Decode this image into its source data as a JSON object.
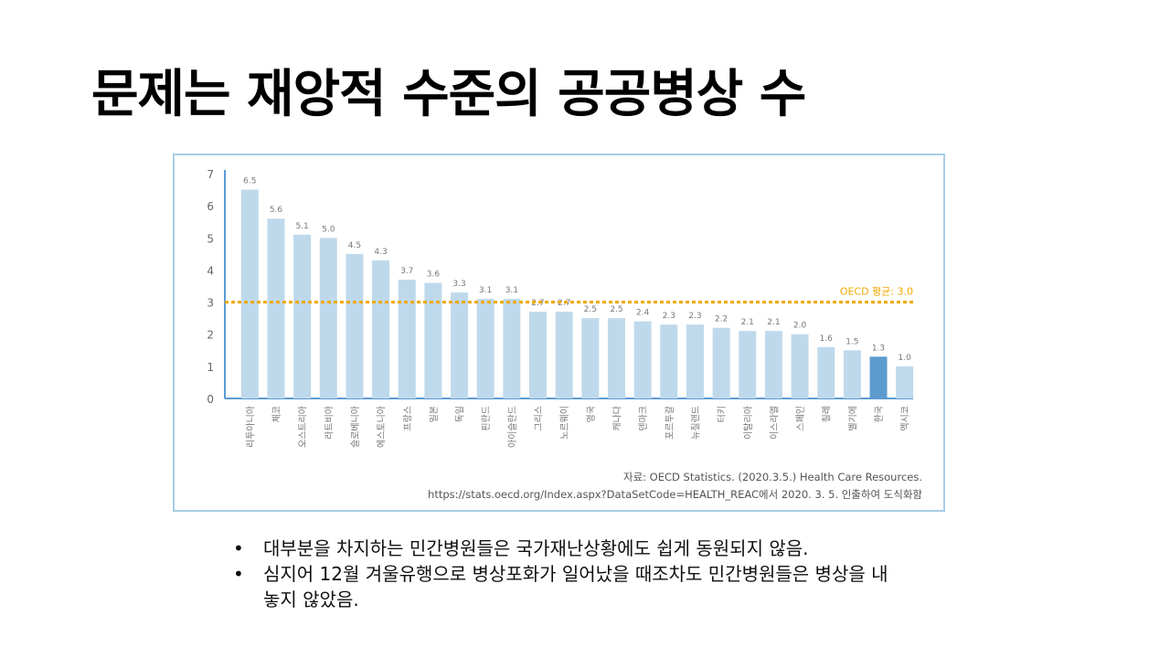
{
  "title": "문제는 재앙적 수준의 공공병상 수",
  "colors": {
    "bar": "#bfd9ec",
    "highlight_bar": "#5d9bcf",
    "avg_line": "#f0a800",
    "axis": "#5b9bd5",
    "frame": "#a8cde6"
  },
  "chart_data": {
    "type": "bar",
    "categories": [
      "리투아니아",
      "체코",
      "오스트리아",
      "라트비아",
      "슬로베니아",
      "에스토니아",
      "프랑스",
      "일본",
      "독일",
      "핀란드",
      "아이슬란드",
      "그리스",
      "노르웨이",
      "영국",
      "캐나다",
      "덴마크",
      "포르투갈",
      "뉴질랜드",
      "터키",
      "이탈리아",
      "이스라엘",
      "스페인",
      "칠레",
      "벨기에",
      "한국",
      "멕시코"
    ],
    "values": [
      6.5,
      5.6,
      5.1,
      5.0,
      4.5,
      4.3,
      3.7,
      3.6,
      3.3,
      3.1,
      3.1,
      2.7,
      2.7,
      2.5,
      2.5,
      2.4,
      2.3,
      2.3,
      2.2,
      2.1,
      2.1,
      2.0,
      1.6,
      1.5,
      1.3,
      1.0
    ],
    "value_labels": [
      "6.5",
      "5.6",
      "5.1",
      "5.0",
      "4.5",
      "4.3",
      "3.7",
      "3.6",
      "3.3",
      "3.1",
      "3.1",
      "2.7",
      "2.7",
      "2.5",
      "2.5",
      "2.4",
      "2.3",
      "2.3",
      "2.2",
      "2.1",
      "2.1",
      "2.0",
      "1.6",
      "1.5",
      "1.3",
      "1.0"
    ],
    "highlight": "한국",
    "ylim": [
      0,
      7
    ],
    "yticks": [
      "0",
      "1",
      "2",
      "3",
      "4",
      "5",
      "6",
      "7"
    ],
    "reference_line": {
      "value": 3.0,
      "label": "OECD 평균: 3.0"
    },
    "grid": false,
    "source_lines": [
      "자료: OECD Statistics. (2020.3.5.) Health Care Resources.",
      "https://stats.oecd.org/Index.aspx?DataSetCode=HEALTH_REAC에서 2020. 3. 5. 인출하여 도식화함"
    ]
  },
  "bullets": [
    {
      "marker": "•",
      "text": "대부분을 차지하는 민간병원들은 국가재난상황에도 쉽게 동원되지 않음."
    },
    {
      "marker": "•",
      "text": "심지어 12월 겨울유행으로 병상포화가 일어났을 때조차도 민간병원들은 병상을 내놓지 않았음."
    }
  ]
}
